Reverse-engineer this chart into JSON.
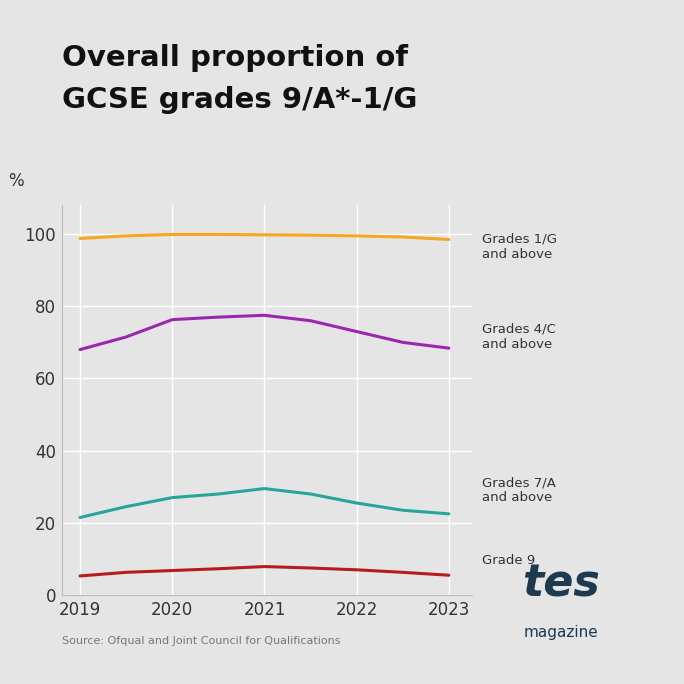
{
  "title_line1": "Overall proportion of",
  "title_line2": "GCSE grades 9/A*-1/G",
  "ylabel": "%",
  "background_color": "#e5e5e5",
  "plot_bg_color": "#e5e5e5",
  "years": [
    2019,
    2019.5,
    2020,
    2020.5,
    2021,
    2021.5,
    2022,
    2022.5,
    2023
  ],
  "grades_1g": [
    98.8,
    99.5,
    99.9,
    99.9,
    99.8,
    99.7,
    99.5,
    99.2,
    98.5
  ],
  "grades_4c": [
    68.0,
    71.5,
    76.3,
    77.0,
    77.5,
    76.0,
    73.0,
    70.0,
    68.4
  ],
  "grades_7a": [
    21.5,
    24.5,
    27.0,
    28.0,
    29.5,
    28.0,
    25.5,
    23.5,
    22.5
  ],
  "grade_9": [
    5.3,
    6.3,
    6.8,
    7.3,
    7.9,
    7.5,
    7.0,
    6.3,
    5.5
  ],
  "color_1g": "#f5a623",
  "color_4c": "#9b27af",
  "color_7a": "#26a69a",
  "color_9": "#b71c1c",
  "line_width": 2.2,
  "label_1g": "Grades 1/G\nand above",
  "label_4c": "Grades 4/C\nand above",
  "label_7a": "Grades 7/A\nand above",
  "label_9": "Grade 9",
  "source_text": "Source: Ofqual and Joint Council for Qualifications",
  "tes_color": "#1e3a4f",
  "ylim_min": 0,
  "ylim_max": 108,
  "yticks": [
    0,
    20,
    40,
    60,
    80,
    100
  ],
  "xticks": [
    2019,
    2020,
    2021,
    2022,
    2023
  ]
}
